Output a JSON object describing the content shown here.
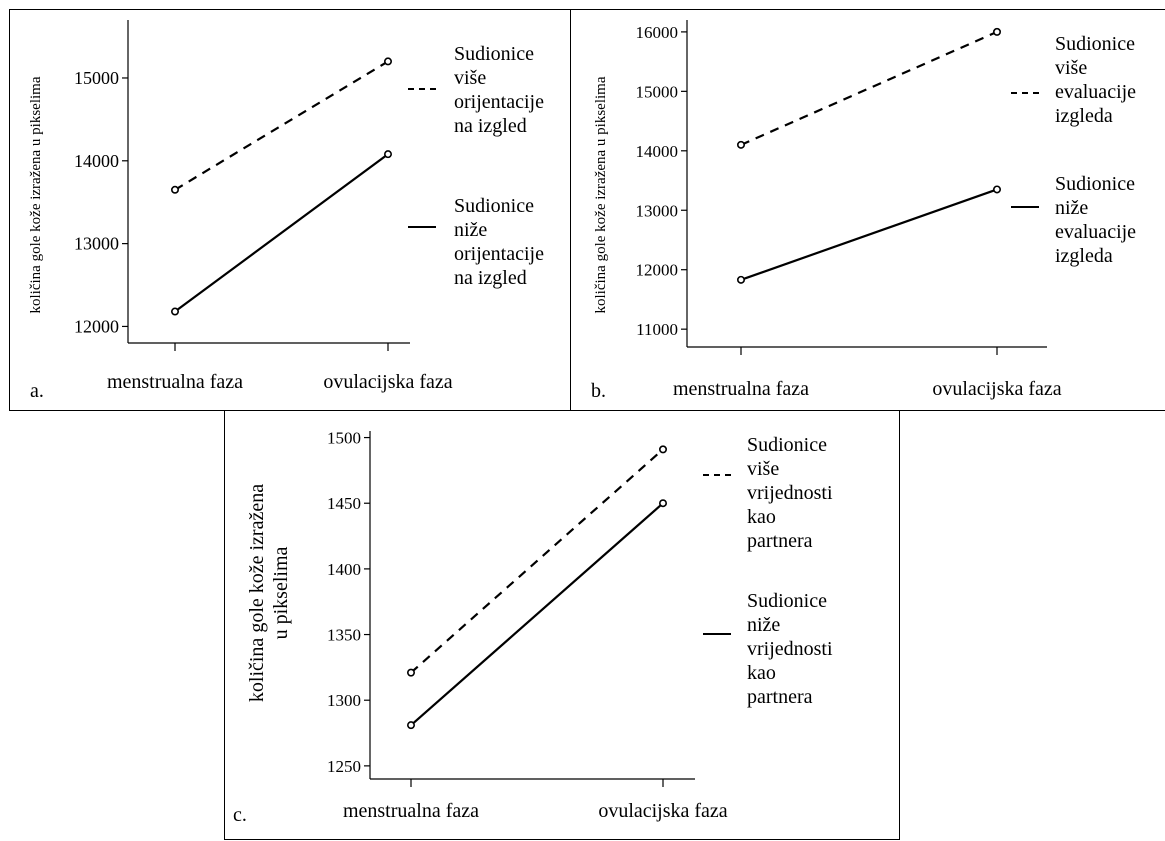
{
  "chart_data": [
    {
      "type": "line",
      "panel_label": "a.",
      "ylabel": "količina  gole kože izražena u pikselima",
      "categories": [
        "menstrualna faza",
        "ovulacijska faza"
      ],
      "yticks": [
        12000,
        13000,
        14000,
        15000
      ],
      "ylim": [
        11800,
        15700
      ],
      "series": [
        {
          "name": "Sudionice\nviše\norijentacije\nna izgled",
          "style": "dashed",
          "values": [
            13650,
            15200
          ]
        },
        {
          "name": "Sudionice\nniže\norijentacije\nna izgled",
          "style": "solid",
          "values": [
            12180,
            14080
          ]
        }
      ]
    },
    {
      "type": "line",
      "panel_label": "b.",
      "ylabel": "količina  gole kože izražena u pikselima",
      "categories": [
        "menstrualna faza",
        "ovulacijska faza"
      ],
      "yticks": [
        11000,
        12000,
        13000,
        14000,
        15000,
        16000
      ],
      "ylim": [
        10700,
        16200
      ],
      "series": [
        {
          "name": "Sudionice\nviše\nevaluacije\nizgleda",
          "style": "dashed",
          "values": [
            14100,
            16000
          ]
        },
        {
          "name": "Sudionice\nniže\nevaluacije\nizgleda",
          "style": "solid",
          "values": [
            11830,
            13350
          ]
        }
      ]
    },
    {
      "type": "line",
      "panel_label": "c.",
      "ylabel": "količina  gole kože izražena\nu pikselima",
      "categories": [
        "menstrualna faza",
        "ovulacijska faza"
      ],
      "yticks": [
        1250,
        1300,
        1350,
        1400,
        1450,
        1500
      ],
      "ylim": [
        1240,
        1505
      ],
      "series": [
        {
          "name": "Sudionice\nviše\nvrijednosti\nkao partnera",
          "style": "dashed",
          "values": [
            1321,
            1491
          ]
        },
        {
          "name": "Sudionice\nniže\nvrijednosti\nkao partnera",
          "style": "solid",
          "values": [
            1281,
            1450
          ]
        }
      ]
    }
  ]
}
